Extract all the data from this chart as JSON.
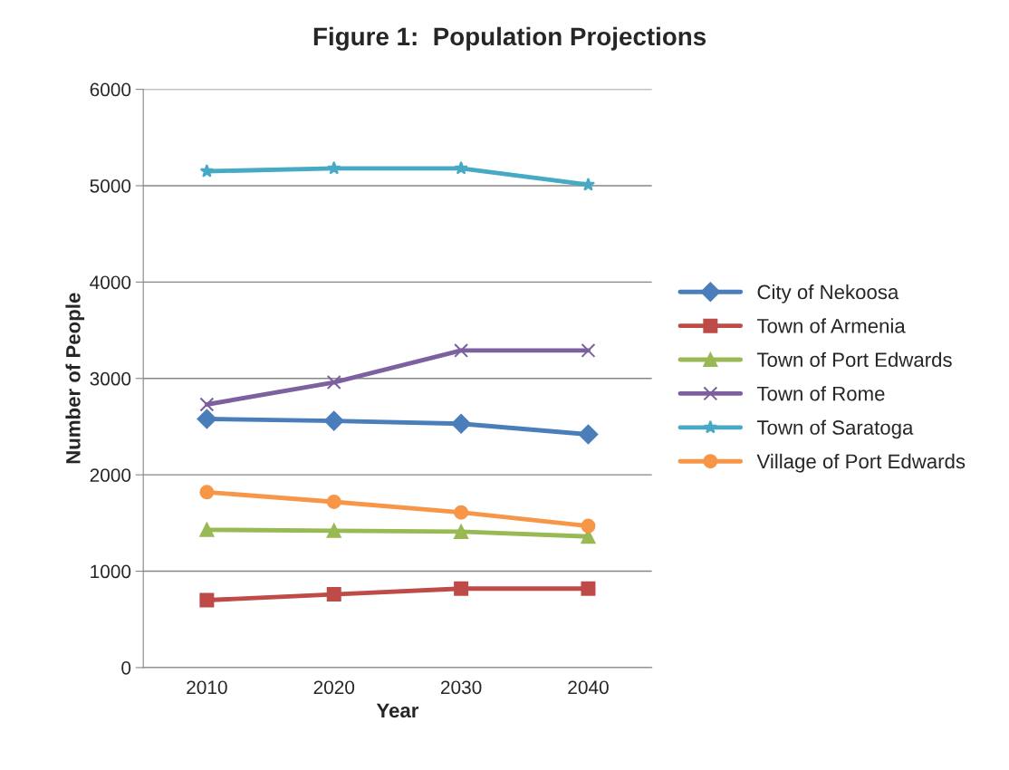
{
  "chart_data": {
    "type": "line",
    "title": "Figure 1:  Population Projections",
    "xlabel": "Year",
    "ylabel": "Number of People",
    "categories": [
      "2010",
      "2020",
      "2030",
      "2040"
    ],
    "ylim": [
      0,
      6000
    ],
    "yticks": [
      0,
      1000,
      2000,
      3000,
      4000,
      5000,
      6000
    ],
    "grid": "y",
    "legend": "right",
    "series": [
      {
        "name": "City of Nekoosa",
        "color": "#4a7ebb",
        "marker": "diamond",
        "values": [
          2580,
          2560,
          2530,
          2420
        ]
      },
      {
        "name": "Town of Armenia",
        "color": "#be4b48",
        "marker": "square",
        "values": [
          700,
          760,
          820,
          820
        ]
      },
      {
        "name": "Town of Port Edwards",
        "color": "#98b954",
        "marker": "triangle",
        "values": [
          1430,
          1420,
          1410,
          1360
        ]
      },
      {
        "name": "Town of Rome",
        "color": "#7d60a0",
        "marker": "cross",
        "values": [
          2730,
          2960,
          3290,
          3290
        ]
      },
      {
        "name": "Town of Saratoga",
        "color": "#46aac5",
        "marker": "star",
        "values": [
          5150,
          5180,
          5180,
          5010
        ]
      },
      {
        "name": "Village of Port Edwards",
        "color": "#f79646",
        "marker": "circle",
        "values": [
          1820,
          1720,
          1610,
          1470
        ]
      }
    ]
  }
}
